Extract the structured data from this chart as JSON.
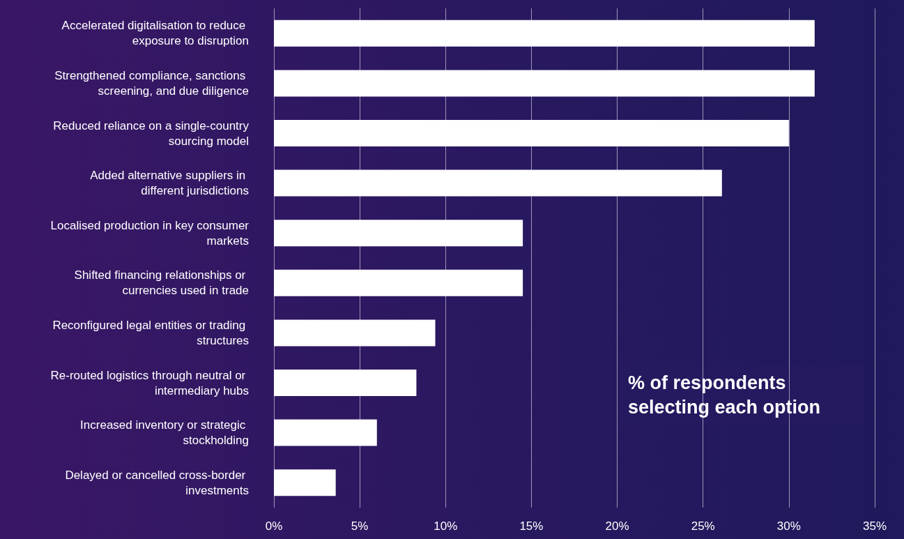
{
  "chart_data": {
    "type": "bar",
    "orientation": "horizontal",
    "categories": [
      "Accelerated digitalisation to reduce exposure to disruption",
      "Strengthened compliance, sanctions screening, and due diligence",
      "Reduced reliance on a single-country sourcing model",
      "Added alternative suppliers in different jurisdictions",
      "Localised production in key consumer markets",
      "Shifted financing relationships or currencies used in trade",
      "Reconfigured legal entities or trading structures",
      "Re-routed logistics through neutral or intermediary hubs",
      "Increased inventory or strategic stockholding",
      "Delayed or cancelled cross-border investments"
    ],
    "values": [
      31.5,
      31.5,
      30.0,
      26.1,
      14.5,
      14.5,
      9.4,
      8.3,
      6.0,
      3.6
    ],
    "color": "#ffffff",
    "xlim": [
      0,
      35
    ],
    "xticks": [
      {
        "value": 0,
        "label": "0%"
      },
      {
        "value": 5,
        "label": "5%"
      },
      {
        "value": 10,
        "label": "10%"
      },
      {
        "value": 15,
        "label": "15%"
      },
      {
        "value": 20,
        "label": "20%"
      },
      {
        "value": 25,
        "label": "25%"
      },
      {
        "value": 30,
        "label": "30%"
      },
      {
        "value": 35,
        "label": "35%"
      }
    ],
    "grid": "x",
    "annotations": [
      "% of respondents selecting each option"
    ]
  }
}
